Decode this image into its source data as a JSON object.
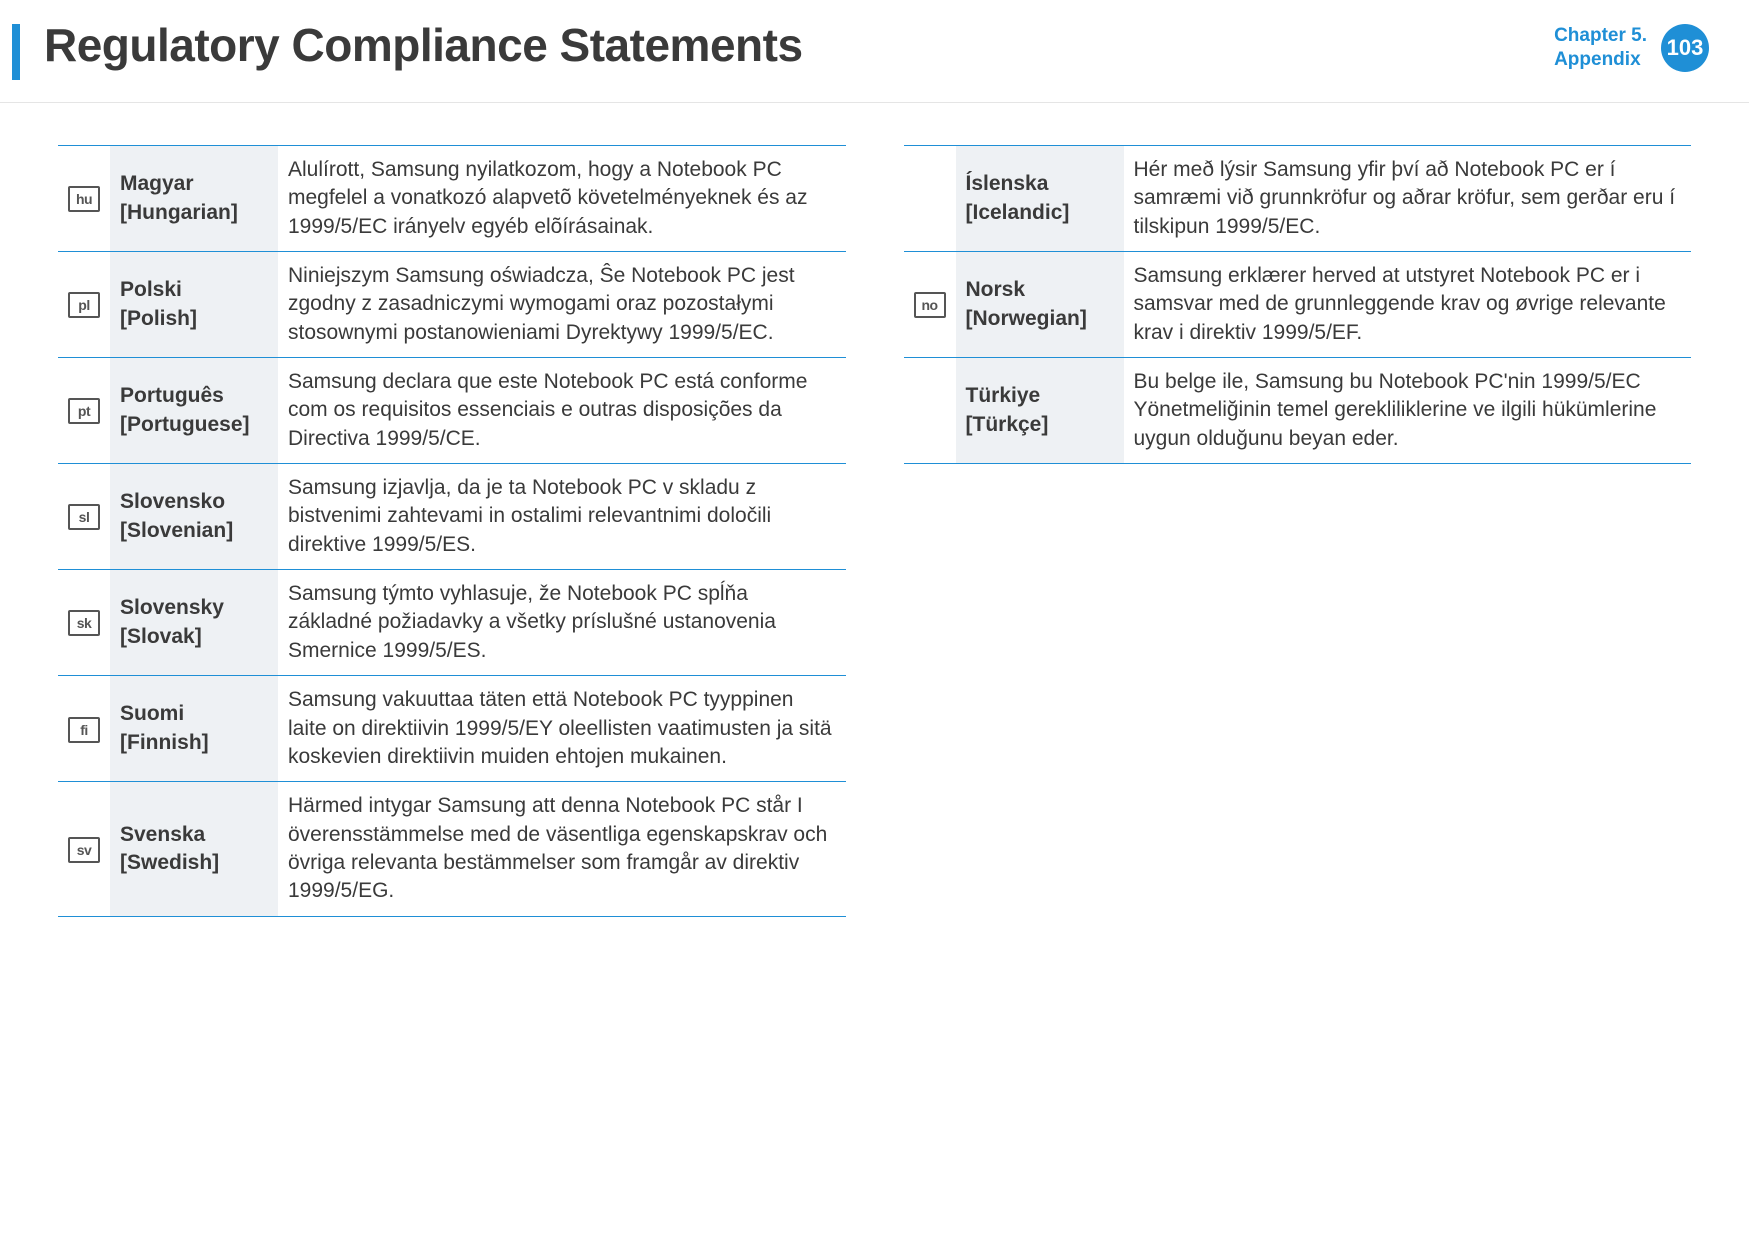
{
  "header": {
    "title": "Regulatory Compliance Statements",
    "chapter_line1": "Chapter 5.",
    "chapter_line2": "Appendix",
    "page_number": "103"
  },
  "colors": {
    "accent": "#1f8fd6",
    "text": "#3a3a3a",
    "lang_bg": "#eef1f4",
    "icon_border": "#555555"
  },
  "left_table": [
    {
      "icon": "hu",
      "lang_native": "Magyar",
      "lang_en": "[Hungarian]",
      "statement": "Alulírott, Samsung nyilatkozom, hogy a Notebook PC megfelel a vonatkozó alapvetõ követelményeknek és az 1999/5/EC irányelv egyéb elõírásainak."
    },
    {
      "icon": "pl",
      "lang_native": "Polski",
      "lang_en": "[Polish]",
      "statement": "Niniejszym Samsung oświadcza, Ŝe Notebook PC jest zgodny z zasadniczymi wymogami oraz pozostałymi stosownymi postanowieniami Dyrektywy 1999/5/EC."
    },
    {
      "icon": "pt",
      "lang_native": "Português",
      "lang_en": "[Portuguese]",
      "statement": "Samsung declara que este Notebook PC está conforme com os requisitos essenciais e outras disposições da Directiva 1999/5/CE."
    },
    {
      "icon": "sl",
      "lang_native": "Slovensko",
      "lang_en": "[Slovenian]",
      "statement": "Samsung izjavlja, da je ta Notebook PC v skladu z bistvenimi zahtevami in ostalimi relevantnimi določili direktive 1999/5/ES."
    },
    {
      "icon": "sk",
      "lang_native": "Slovensky",
      "lang_en": "[Slovak]",
      "statement": "Samsung týmto vyhlasuje, že Notebook PC spĺňa základné požiadavky a všetky príslušné ustanovenia Smernice 1999/5/ES."
    },
    {
      "icon": "fi",
      "lang_native": "Suomi",
      "lang_en": "[Finnish]",
      "statement": "Samsung vakuuttaa täten että Notebook PC tyyppinen laite on direktiivin 1999/5/EY oleellisten vaatimusten ja sitä koskevien direktiivin muiden ehtojen mukainen."
    },
    {
      "icon": "sv",
      "lang_native": "Svenska",
      "lang_en": "[Swedish]",
      "statement": "Härmed intygar Samsung att denna Notebook PC står I överensstämmelse med de väsentliga egenskapskrav och övriga relevanta bestämmelser som framgår av direktiv 1999/5/EG."
    }
  ],
  "right_table": [
    {
      "icon": "",
      "lang_native": "Íslenska",
      "lang_en": "[Icelandic]",
      "statement": "Hér með lýsir Samsung yfir því að Notebook PC er í samræmi við grunnkröfur og aðrar kröfur, sem gerðar eru í tilskipun 1999/5/EC."
    },
    {
      "icon": "no",
      "lang_native": "Norsk",
      "lang_en": "[Norwegian]",
      "statement": "Samsung erklærer herved at utstyret Notebook PC er i samsvar med de grunnleggende krav og øvrige relevante krav i direktiv 1999/5/EF."
    },
    {
      "icon": "",
      "lang_native": "Türkiye",
      "lang_en": "[Türkçe]",
      "statement": "Bu belge ile, Samsung bu Notebook PC'nin 1999/5/EC Yönetmeliğinin temel gerekliliklerine ve ilgili hükümlerine uygun olduğunu beyan eder."
    }
  ]
}
